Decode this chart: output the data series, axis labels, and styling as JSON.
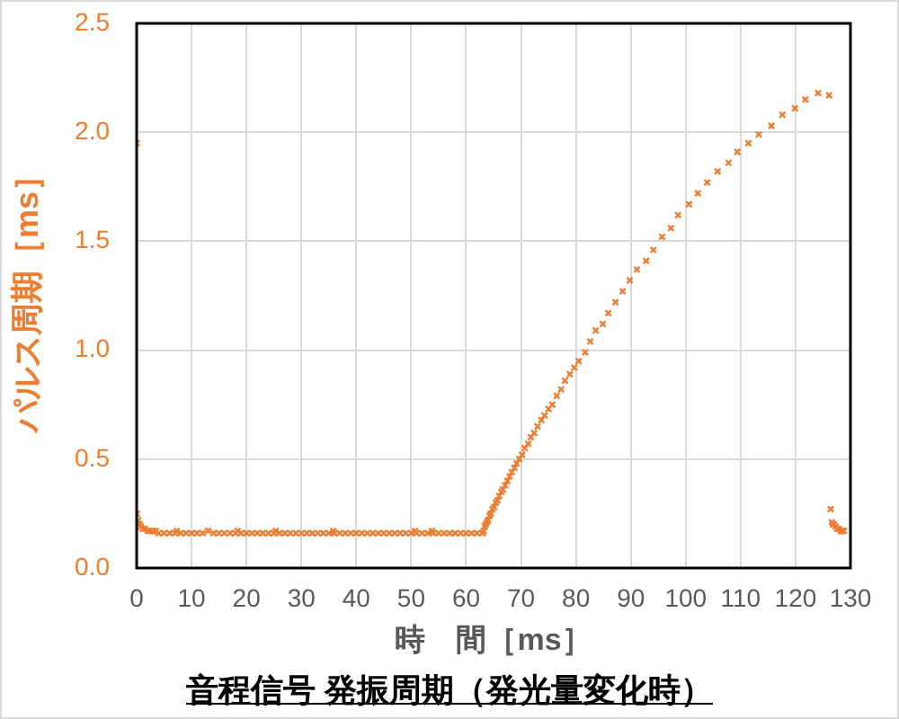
{
  "chart_data": {
    "type": "scatter",
    "title": "音程信号 発振周期（発光量変化時）",
    "xlabel": "時　間［ms］",
    "ylabel": "パルス周期［ms］",
    "color": "#ed7d31",
    "marker": "cross",
    "grid": true,
    "x": [
      0,
      0.05,
      0.3,
      0.55,
      0.8,
      1.1,
      1.5,
      2,
      2.5,
      3,
      3.5,
      4,
      5,
      6,
      7,
      7.3,
      8,
      9,
      10,
      11,
      12,
      13,
      14,
      15,
      16,
      17,
      18,
      18.4,
      19,
      20,
      21,
      22,
      23,
      24,
      25,
      25.3,
      26,
      27,
      28,
      29,
      30,
      31,
      32,
      33,
      34,
      35,
      35.8,
      36,
      37,
      38,
      39,
      40,
      41,
      42,
      43,
      44,
      45,
      46,
      47,
      48,
      49,
      50,
      50.7,
      51,
      52,
      53,
      53.8,
      54,
      55,
      56,
      57,
      58,
      59,
      60,
      61,
      62,
      63,
      63.2,
      63.4,
      63.6,
      63.8,
      64,
      64.3,
      64.5,
      64.8,
      65.1,
      65.4,
      65.7,
      66,
      66.4,
      66.7,
      67.1,
      67.5,
      67.9,
      68.3,
      68.8,
      69.2,
      69.7,
      70.2,
      70.7,
      71.3,
      71.8,
      72.4,
      73,
      73.7,
      74.3,
      75,
      75.7,
      76.5,
      77.3,
      78,
      78.9,
      79.7,
      80.5,
      81.7,
      82.6,
      83.6,
      84.9,
      85.9,
      87.2,
      88.5,
      89.8,
      91.1,
      92.8,
      94.1,
      95.7,
      97.3,
      98.6,
      100.6,
      102.2,
      103.9,
      105.8,
      107.8,
      109.4,
      111.4,
      113.3,
      115.6,
      117.6,
      119.9,
      121.8,
      124.1,
      126.1,
      126.4,
      126.6,
      126.8,
      127,
      127.3,
      127.6,
      127.9,
      128.2,
      128.5,
      128.8
    ],
    "values": [
      1.95,
      0.25,
      0.22,
      0.2,
      0.19,
      0.18,
      0.18,
      0.17,
      0.17,
      0.17,
      0.17,
      0.16,
      0.16,
      0.16,
      0.16,
      0.17,
      0.16,
      0.16,
      0.16,
      0.16,
      0.16,
      0.17,
      0.16,
      0.16,
      0.16,
      0.16,
      0.16,
      0.17,
      0.16,
      0.16,
      0.16,
      0.16,
      0.16,
      0.16,
      0.16,
      0.17,
      0.16,
      0.16,
      0.16,
      0.16,
      0.16,
      0.16,
      0.16,
      0.16,
      0.16,
      0.16,
      0.17,
      0.16,
      0.16,
      0.16,
      0.16,
      0.16,
      0.16,
      0.16,
      0.16,
      0.16,
      0.16,
      0.16,
      0.16,
      0.16,
      0.16,
      0.16,
      0.17,
      0.16,
      0.16,
      0.16,
      0.17,
      0.16,
      0.16,
      0.16,
      0.16,
      0.16,
      0.16,
      0.16,
      0.16,
      0.16,
      0.16,
      0.17,
      0.19,
      0.2,
      0.21,
      0.22,
      0.24,
      0.25,
      0.27,
      0.28,
      0.3,
      0.31,
      0.33,
      0.35,
      0.36,
      0.38,
      0.4,
      0.42,
      0.44,
      0.46,
      0.48,
      0.5,
      0.52,
      0.55,
      0.57,
      0.6,
      0.62,
      0.65,
      0.68,
      0.7,
      0.73,
      0.75,
      0.79,
      0.82,
      0.86,
      0.89,
      0.92,
      0.95,
      0.99,
      1.04,
      1.09,
      1.12,
      1.17,
      1.22,
      1.27,
      1.32,
      1.37,
      1.41,
      1.46,
      1.52,
      1.56,
      1.62,
      1.67,
      1.72,
      1.77,
      1.82,
      1.86,
      1.91,
      1.95,
      1.99,
      2.03,
      2.08,
      2.11,
      2.15,
      2.18,
      2.17,
      0.27,
      0.21,
      0.2,
      0.2,
      0.19,
      0.18,
      0.18,
      0.17,
      0.17,
      0.17
    ],
    "xlim": [
      0,
      130
    ],
    "xticks": [
      0,
      10,
      20,
      30,
      40,
      50,
      60,
      70,
      80,
      90,
      100,
      110,
      120,
      130
    ],
    "ylim": [
      0,
      2.5
    ],
    "yticks": [
      {
        "value": 0,
        "label": "0.0"
      },
      0.5,
      {
        "value": 1,
        "label": "1.0"
      },
      1.5,
      {
        "value": 2,
        "label": "2.0"
      },
      2.5
    ]
  }
}
